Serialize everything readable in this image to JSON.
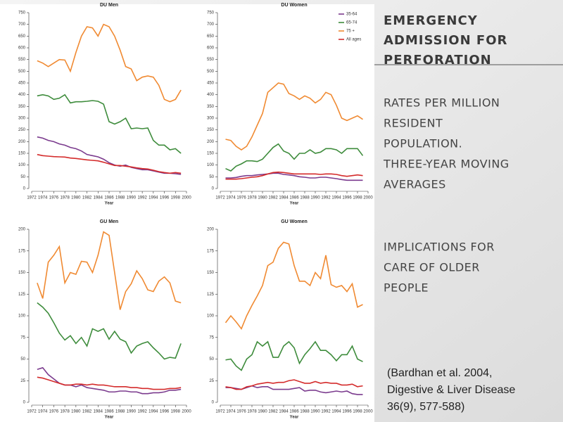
{
  "chart_data": [
    {
      "type": "line",
      "title": "DU Men",
      "xlabel": "Year",
      "xlim": [
        1972,
        2000
      ],
      "xticks": [
        1972,
        1974,
        1976,
        1978,
        1980,
        1982,
        1984,
        1986,
        1988,
        1990,
        1992,
        1994,
        1996,
        1998,
        2000
      ],
      "ylim": [
        0,
        750
      ],
      "yticks": [
        0,
        50,
        100,
        150,
        200,
        250,
        300,
        350,
        400,
        450,
        500,
        550,
        600,
        650,
        700,
        750
      ],
      "x": [
        1973,
        1974,
        1975,
        1976,
        1977,
        1978,
        1979,
        1980,
        1981,
        1982,
        1983,
        1984,
        1985,
        1986,
        1987,
        1988,
        1989,
        1990,
        1991,
        1992,
        1993,
        1994,
        1995,
        1996,
        1997,
        1998,
        1999
      ],
      "series": [
        {
          "color": "#7b3b8e",
          "values": [
            220,
            215,
            205,
            200,
            190,
            185,
            175,
            170,
            160,
            145,
            140,
            135,
            125,
            110,
            100,
            95,
            100,
            90,
            85,
            80,
            80,
            75,
            70,
            65,
            65,
            63,
            60
          ]
        },
        {
          "color": "#3e8c3c",
          "values": [
            395,
            400,
            395,
            380,
            385,
            400,
            365,
            370,
            370,
            372,
            375,
            372,
            360,
            285,
            275,
            285,
            300,
            255,
            258,
            255,
            258,
            205,
            185,
            185,
            165,
            170,
            150
          ]
        },
        {
          "color": "#f08a32",
          "values": [
            545,
            535,
            520,
            535,
            550,
            548,
            500,
            580,
            650,
            690,
            685,
            650,
            700,
            690,
            650,
            590,
            520,
            510,
            460,
            475,
            480,
            475,
            440,
            380,
            370,
            380,
            420
          ]
        },
        {
          "color": "#d42b2b",
          "values": [
            145,
            140,
            138,
            136,
            135,
            134,
            130,
            128,
            125,
            122,
            120,
            118,
            112,
            105,
            98,
            98,
            95,
            92,
            88,
            85,
            83,
            78,
            72,
            68,
            65,
            68,
            65
          ]
        }
      ]
    },
    {
      "type": "line",
      "title": "DU Women",
      "xlabel": "Year",
      "legend": "upper right",
      "xlim": [
        1972,
        2000
      ],
      "xticks": [
        1972,
        1974,
        1976,
        1978,
        1980,
        1982,
        1984,
        1986,
        1988,
        1990,
        1992,
        1994,
        1996,
        1998,
        2000
      ],
      "ylim": [
        0,
        750
      ],
      "yticks": [
        0,
        50,
        100,
        150,
        200,
        250,
        300,
        350,
        400,
        450,
        500,
        550,
        600,
        650,
        700,
        750
      ],
      "x": [
        1973,
        1974,
        1975,
        1976,
        1977,
        1978,
        1979,
        1980,
        1981,
        1982,
        1983,
        1984,
        1985,
        1986,
        1987,
        1988,
        1989,
        1990,
        1991,
        1992,
        1993,
        1994,
        1995,
        1996,
        1997,
        1998,
        1999
      ],
      "series": [
        {
          "name": "35-64",
          "color": "#7b3b8e",
          "values": [
            45,
            45,
            47,
            52,
            55,
            55,
            58,
            60,
            62,
            65,
            65,
            60,
            58,
            55,
            50,
            48,
            45,
            45,
            48,
            48,
            45,
            42,
            38,
            35,
            35,
            35,
            35
          ]
        },
        {
          "name": "65-74",
          "color": "#3e8c3c",
          "values": [
            85,
            75,
            95,
            105,
            118,
            118,
            115,
            125,
            150,
            175,
            190,
            160,
            150,
            125,
            150,
            150,
            165,
            150,
            155,
            170,
            170,
            165,
            150,
            170,
            170,
            170,
            140
          ]
        },
        {
          "name": "75 +",
          "color": "#f08a32",
          "values": [
            210,
            205,
            180,
            165,
            180,
            220,
            270,
            320,
            410,
            430,
            450,
            445,
            405,
            395,
            380,
            395,
            385,
            365,
            380,
            410,
            400,
            355,
            300,
            290,
            300,
            310,
            295
          ]
        },
        {
          "name": "All ages",
          "color": "#d42b2b",
          "values": [
            40,
            40,
            40,
            42,
            45,
            48,
            50,
            55,
            62,
            68,
            70,
            68,
            65,
            62,
            62,
            62,
            62,
            62,
            60,
            62,
            62,
            60,
            55,
            52,
            55,
            58,
            55
          ]
        }
      ]
    },
    {
      "type": "line",
      "title": "GU Men",
      "xlabel": "Year",
      "xlim": [
        1972,
        2000
      ],
      "xticks": [
        1972,
        1974,
        1976,
        1978,
        1980,
        1982,
        1984,
        1986,
        1988,
        1990,
        1992,
        1994,
        1996,
        1998,
        2000
      ],
      "ylim": [
        0,
        200
      ],
      "yticks": [
        0,
        25,
        50,
        75,
        100,
        125,
        150,
        175,
        200
      ],
      "x": [
        1973,
        1974,
        1975,
        1976,
        1977,
        1978,
        1979,
        1980,
        1981,
        1982,
        1983,
        1984,
        1985,
        1986,
        1987,
        1988,
        1989,
        1990,
        1991,
        1992,
        1993,
        1994,
        1995,
        1996,
        1997,
        1998,
        1999
      ],
      "series": [
        {
          "color": "#7b3b8e",
          "values": [
            38,
            40,
            32,
            27,
            22,
            20,
            20,
            18,
            20,
            17,
            16,
            15,
            14,
            12,
            12,
            13,
            13,
            12,
            12,
            10,
            10,
            11,
            11,
            12,
            14,
            14,
            15
          ]
        },
        {
          "color": "#3e8c3c",
          "values": [
            115,
            110,
            103,
            92,
            80,
            72,
            77,
            68,
            75,
            65,
            85,
            82,
            85,
            73,
            82,
            73,
            70,
            57,
            65,
            68,
            70,
            63,
            57,
            50,
            52,
            51,
            68
          ]
        },
        {
          "color": "#f08a32",
          "values": [
            138,
            120,
            162,
            170,
            180,
            138,
            150,
            148,
            163,
            162,
            150,
            170,
            197,
            193,
            150,
            107,
            128,
            137,
            152,
            143,
            130,
            128,
            140,
            145,
            138,
            117,
            115
          ]
        },
        {
          "color": "#d42b2b",
          "values": [
            29,
            28,
            26,
            24,
            22,
            20,
            20,
            21,
            21,
            20,
            21,
            20,
            20,
            19,
            18,
            18,
            18,
            17,
            17,
            16,
            16,
            15,
            15,
            15,
            16,
            16,
            17
          ]
        }
      ]
    },
    {
      "type": "line",
      "title": "GU Women",
      "xlabel": "Year",
      "xlim": [
        1972,
        2000
      ],
      "xticks": [
        1972,
        1974,
        1976,
        1978,
        1980,
        1982,
        1984,
        1986,
        1988,
        1990,
        1992,
        1994,
        1996,
        1998,
        2000
      ],
      "ylim": [
        0,
        200
      ],
      "yticks": [
        0,
        25,
        50,
        75,
        100,
        125,
        150,
        175,
        200
      ],
      "x": [
        1973,
        1974,
        1975,
        1976,
        1977,
        1978,
        1979,
        1980,
        1981,
        1982,
        1983,
        1984,
        1985,
        1986,
        1987,
        1988,
        1989,
        1990,
        1991,
        1992,
        1993,
        1994,
        1995,
        1996,
        1997,
        1998,
        1999
      ],
      "series": [
        {
          "color": "#7b3b8e",
          "values": [
            17,
            17,
            16,
            15,
            17,
            19,
            17,
            18,
            18,
            15,
            15,
            15,
            15,
            16,
            17,
            13,
            14,
            14,
            12,
            11,
            12,
            13,
            12,
            13,
            10,
            9,
            9
          ]
        },
        {
          "color": "#3e8c3c",
          "values": [
            49,
            50,
            42,
            37,
            50,
            55,
            70,
            65,
            70,
            52,
            52,
            65,
            70,
            63,
            45,
            55,
            62,
            70,
            60,
            60,
            55,
            48,
            55,
            55,
            65,
            50,
            47
          ]
        },
        {
          "color": "#f08a32",
          "values": [
            92,
            100,
            93,
            85,
            100,
            112,
            123,
            135,
            158,
            162,
            178,
            185,
            183,
            158,
            140,
            140,
            135,
            150,
            143,
            170,
            136,
            133,
            135,
            128,
            137,
            110,
            113
          ]
        },
        {
          "color": "#d42b2b",
          "values": [
            18,
            17,
            15,
            15,
            18,
            19,
            21,
            22,
            23,
            22,
            23,
            23,
            25,
            26,
            24,
            22,
            22,
            24,
            22,
            23,
            22,
            22,
            20,
            20,
            21,
            18,
            19
          ]
        }
      ]
    }
  ],
  "slide": {
    "heading_lines": [
      "EMERGENCY",
      "ADMISSION FOR",
      "PERFORATION"
    ],
    "subtitle_lines": [
      "RATES PER MILLION",
      "RESIDENT",
      "POPULATION.",
      "THREE-YEAR MOVING",
      "AVERAGES"
    ],
    "implication_lines": [
      "IMPLICATIONS FOR",
      "CARE OF OLDER",
      "PEOPLE"
    ],
    "citation_lines": [
      "(Bardhan et al. 2004,",
      "Digestive & Liver Disease",
      "36(9), 577-588)"
    ]
  }
}
